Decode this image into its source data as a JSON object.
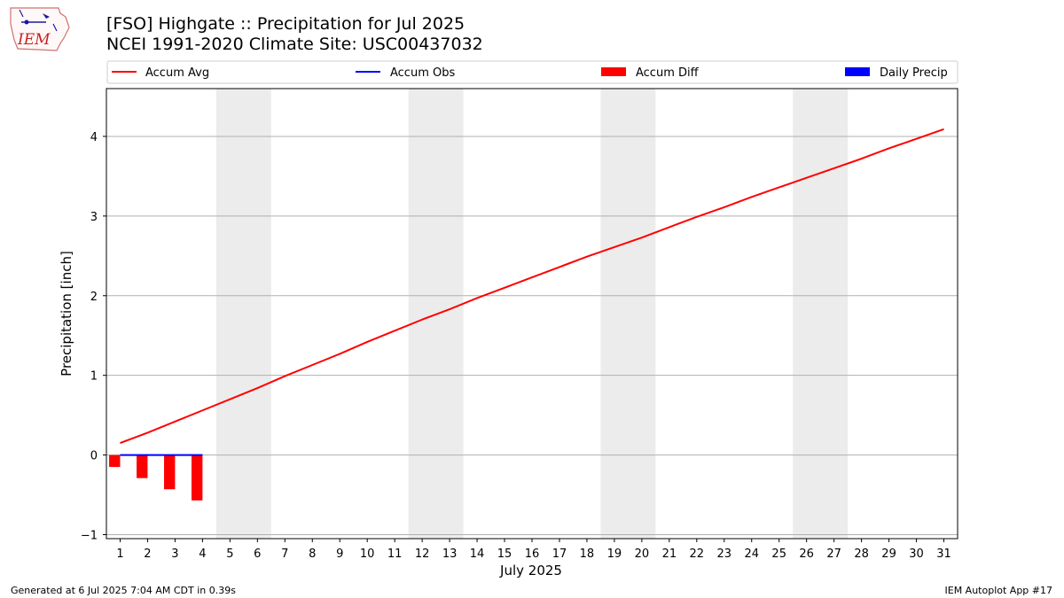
{
  "header": {
    "title_line1": "[FSO] Highgate :: Precipitation for Jul 2025",
    "title_line2": "NCEI 1991-2020 Climate Site: USC00437032",
    "logo_text": "IEM"
  },
  "footer": {
    "left": "Generated at 6 Jul 2025 7:04 AM CDT in 0.39s",
    "right": "IEM Autoplot App #17"
  },
  "colors": {
    "accum_avg": "#ff0000",
    "accum_obs": "#0000ff",
    "accum_diff": "#ff0000",
    "daily_precip": "#0000ff",
    "weekend_shade": "#ececec",
    "grid": "#b0b0b0"
  },
  "chart_data": {
    "type": "bar",
    "xlabel": "July 2025",
    "ylabel": "Precipitation [inch]",
    "xlim": [
      0.5,
      31.5
    ],
    "ylim": [
      -1.05,
      4.6
    ],
    "x": [
      1,
      2,
      3,
      4,
      5,
      6,
      7,
      8,
      9,
      10,
      11,
      12,
      13,
      14,
      15,
      16,
      17,
      18,
      19,
      20,
      21,
      22,
      23,
      24,
      25,
      26,
      27,
      28,
      29,
      30,
      31
    ],
    "x_tick_labels": [
      "1",
      "2",
      "3",
      "4",
      "5",
      "6",
      "7",
      "8",
      "9",
      "10",
      "11",
      "12",
      "13",
      "14",
      "15",
      "16",
      "17",
      "18",
      "19",
      "20",
      "21",
      "22",
      "23",
      "24",
      "25",
      "26",
      "27",
      "28",
      "29",
      "30",
      "31"
    ],
    "y_ticks": [
      -1,
      0,
      1,
      2,
      3,
      4
    ],
    "y_tick_labels": [
      "−1",
      "0",
      "1",
      "2",
      "3",
      "4"
    ],
    "grid": "horizontal",
    "legend_position": "top, above plot",
    "weekend_shading": [
      [
        5,
        6
      ],
      [
        12,
        13
      ],
      [
        19,
        20
      ],
      [
        26,
        27
      ]
    ],
    "series": [
      {
        "name": "Accum Avg",
        "kind": "line",
        "x": [
          1,
          2,
          3,
          4,
          5,
          6,
          7,
          8,
          9,
          10,
          11,
          12,
          13,
          14,
          15,
          16,
          17,
          18,
          19,
          20,
          21,
          22,
          23,
          24,
          25,
          26,
          27,
          28,
          29,
          30,
          31
        ],
        "values": [
          0.15,
          0.28,
          0.42,
          0.56,
          0.7,
          0.84,
          0.99,
          1.13,
          1.27,
          1.42,
          1.56,
          1.7,
          1.83,
          1.97,
          2.1,
          2.23,
          2.36,
          2.49,
          2.61,
          2.73,
          2.86,
          2.99,
          3.11,
          3.24,
          3.36,
          3.48,
          3.6,
          3.72,
          3.85,
          3.97,
          4.09
        ]
      },
      {
        "name": "Accum Obs",
        "kind": "line",
        "x": [
          1,
          2,
          3,
          4
        ],
        "values": [
          0,
          0,
          0,
          0
        ]
      },
      {
        "name": "Accum Diff",
        "kind": "bar",
        "x": [
          1,
          2,
          3,
          4
        ],
        "values": [
          -0.15,
          -0.29,
          -0.43,
          -0.57
        ]
      },
      {
        "name": "Daily Precip",
        "kind": "bar",
        "x": [
          1,
          2,
          3,
          4
        ],
        "values": [
          0,
          0,
          0,
          0
        ]
      }
    ]
  }
}
